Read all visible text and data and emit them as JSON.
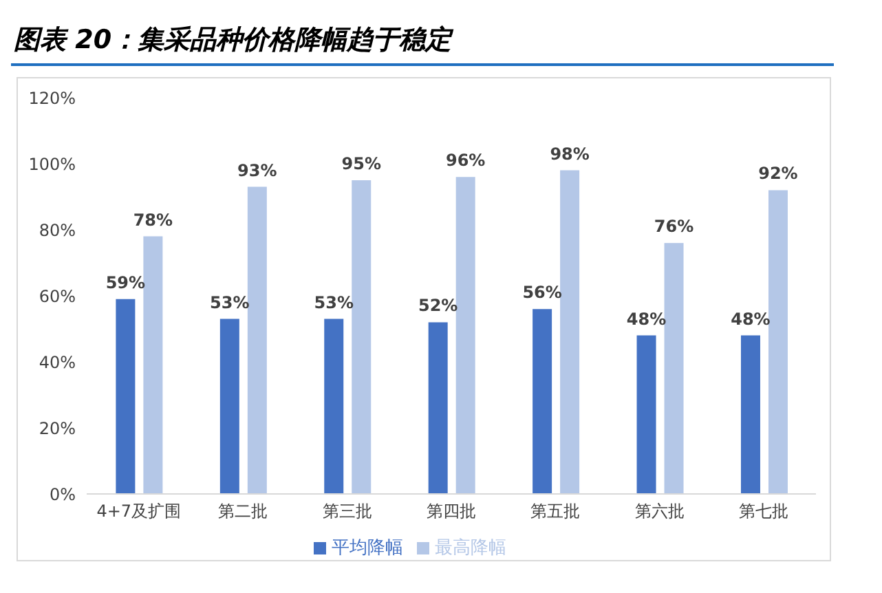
{
  "chart_data": {
    "type": "bar",
    "title": "图表 20：集采品种价格降幅趋于稳定",
    "categories": [
      "4+7及扩围",
      "第二批",
      "第三批",
      "第四批",
      "第五批",
      "第六批",
      "第七批"
    ],
    "series": [
      {
        "name": "平均降幅",
        "color": "#4472c4",
        "values": [
          59,
          53,
          53,
          52,
          56,
          48,
          48
        ],
        "value_labels": [
          "59%",
          "53%",
          "53%",
          "52%",
          "56%",
          "48%",
          "48%"
        ]
      },
      {
        "name": "最高降幅",
        "color": "#b4c7e7",
        "values": [
          78,
          93,
          95,
          96,
          98,
          76,
          92
        ],
        "value_labels": [
          "78%",
          "93%",
          "95%",
          "96%",
          "98%",
          "76%",
          "92%"
        ]
      }
    ],
    "ylim": [
      0,
      120
    ],
    "yticks": [
      {
        "value": 0,
        "label": "0%"
      },
      {
        "value": 20,
        "label": "20%"
      },
      {
        "value": 40,
        "label": "40%"
      },
      {
        "value": 60,
        "label": "60%"
      },
      {
        "value": 80,
        "label": "80%"
      },
      {
        "value": 100,
        "label": "100%"
      },
      {
        "value": 120,
        "label": "120%"
      }
    ],
    "grid": false,
    "legend": "bottom"
  }
}
